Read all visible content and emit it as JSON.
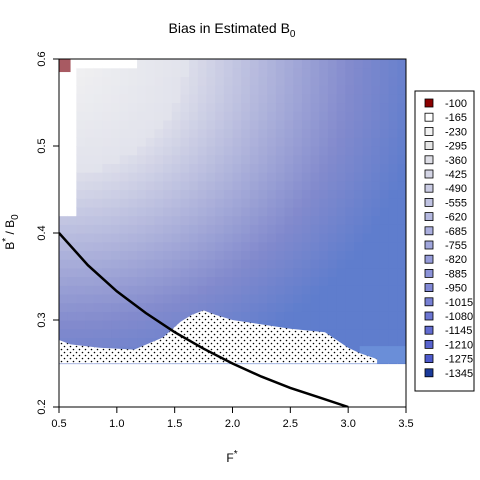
{
  "chart_data": {
    "type": "heatmap",
    "title": {
      "main": "Bias in Estimated B",
      "sub": "0"
    },
    "xlabel": {
      "main": "F",
      "sup": "*"
    },
    "ylabel": {
      "main": "B",
      "sup": "*",
      "tail": " / B",
      "sub": "0"
    },
    "xlim": [
      0.5,
      3.5
    ],
    "ylim": [
      0.2,
      0.6
    ],
    "x_ticks": [
      "0.5",
      "1.0",
      "1.5",
      "2.0",
      "2.5",
      "3.0",
      "3.5"
    ],
    "y_ticks": [
      "0.2",
      "0.3",
      "0.4",
      "0.5",
      "0.6"
    ],
    "grid": false,
    "legend_position": "right",
    "legend": [
      {
        "label": "-100",
        "color": "#8b0000"
      },
      {
        "label": "-165",
        "color": "#ffffff"
      },
      {
        "label": "-230",
        "color": "#f2f2f2"
      },
      {
        "label": "-295",
        "color": "#e6e6e6"
      },
      {
        "label": "-360",
        "color": "#dedee6"
      },
      {
        "label": "-425",
        "color": "#d4d5e5"
      },
      {
        "label": "-490",
        "color": "#cacce4"
      },
      {
        "label": "-555",
        "color": "#c0c3e2"
      },
      {
        "label": "-620",
        "color": "#b5b9e0"
      },
      {
        "label": "-685",
        "color": "#abafde"
      },
      {
        "label": "-755",
        "color": "#a0a6dc"
      },
      {
        "label": "-820",
        "color": "#969cda"
      },
      {
        "label": "-885",
        "color": "#8c93d8"
      },
      {
        "label": "-950",
        "color": "#8189d6"
      },
      {
        "label": "-1015",
        "color": "#7780d4"
      },
      {
        "label": "-1080",
        "color": "#6c76d2"
      },
      {
        "label": "-1145",
        "color": "#626cd0"
      },
      {
        "label": "-1210",
        "color": "#5863ce"
      },
      {
        "label": "-1275",
        "color": "#4d5acc"
      },
      {
        "label": "-1345",
        "color": "#1a3a9a"
      }
    ],
    "curve": {
      "type": "line",
      "x": [
        0.5,
        0.75,
        1.0,
        1.25,
        1.5,
        1.75,
        2.0,
        2.25,
        2.5,
        2.75,
        3.0
      ],
      "y": [
        0.4,
        0.363,
        0.333,
        0.308,
        0.286,
        0.267,
        0.25,
        0.235,
        0.222,
        0.211,
        0.2
      ]
    },
    "stippled_region": {
      "description_values": "x: 0.5-3.3, y: 0.25 to upper boundary",
      "x": [
        0.5,
        0.6,
        0.85,
        1.15,
        1.4,
        1.55,
        1.65,
        1.75,
        1.85,
        2.0,
        2.2,
        2.5,
        2.8,
        3.0,
        3.1,
        3.25
      ],
      "y": [
        0.277,
        0.272,
        0.268,
        0.266,
        0.28,
        0.298,
        0.306,
        0.311,
        0.306,
        0.3,
        0.296,
        0.29,
        0.286,
        0.268,
        0.262,
        0.255
      ]
    },
    "bias_grid": {
      "nx": 40,
      "ny": 40
    }
  }
}
